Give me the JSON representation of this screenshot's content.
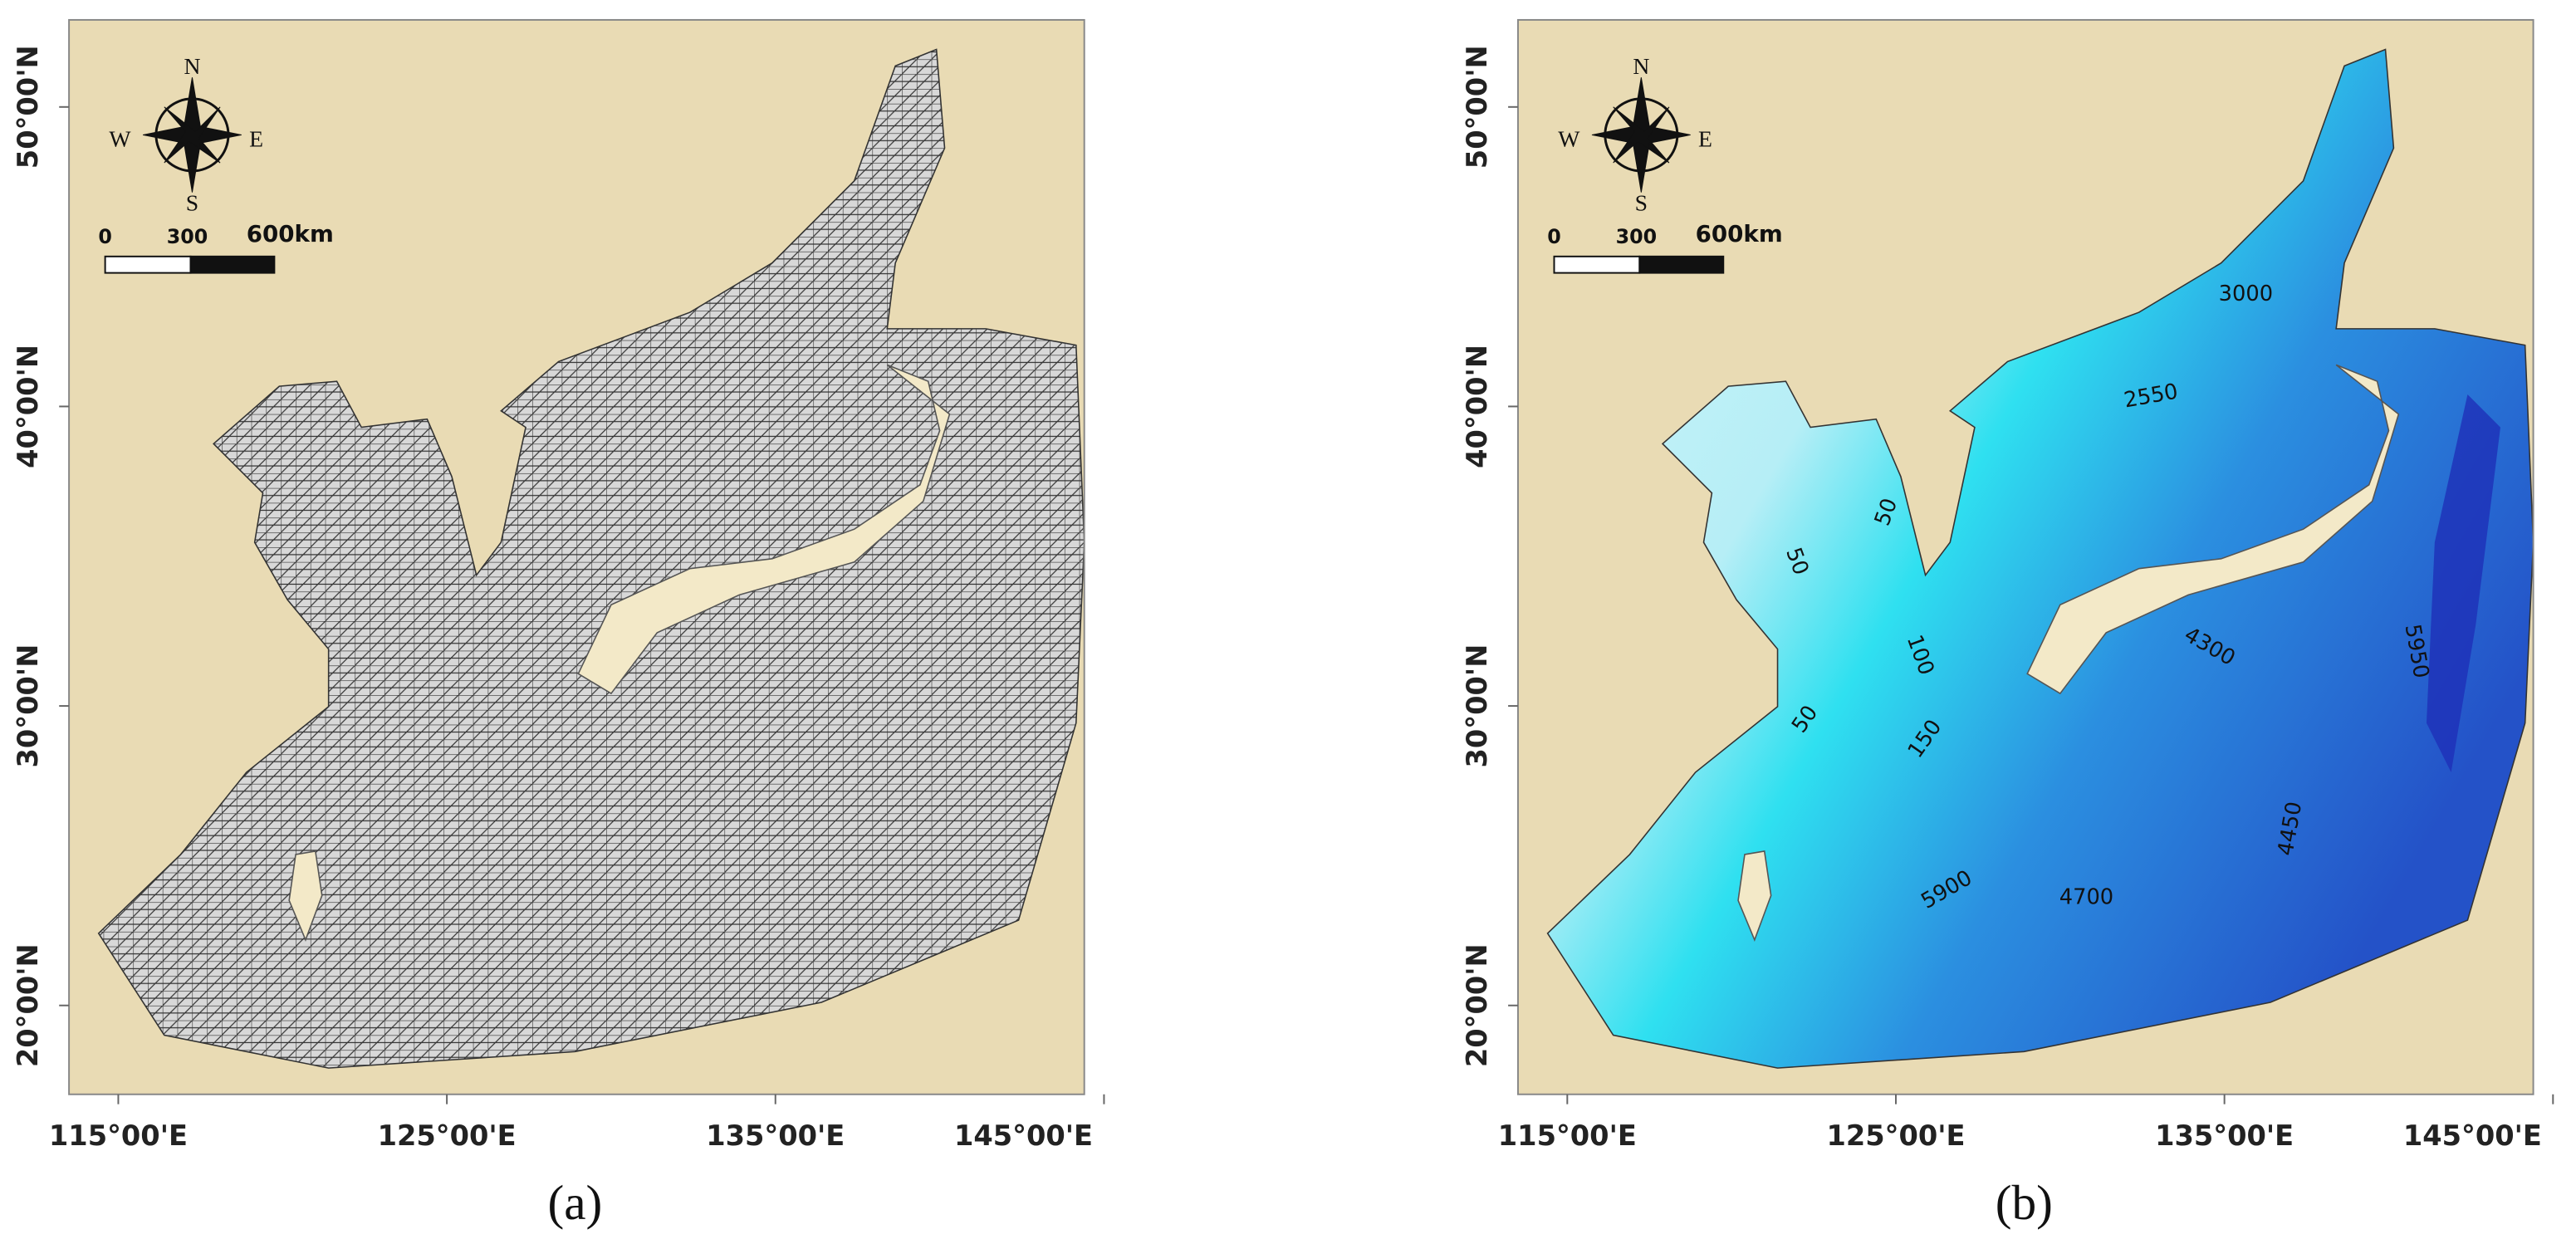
{
  "panels": [
    {
      "label": "(a)",
      "compass": {
        "n": "N",
        "e": "E",
        "s": "S",
        "w": "W"
      },
      "scale_bar": [
        "0",
        "300",
        "600km"
      ],
      "lat_ticks": [
        {
          "value": 50,
          "label": "50°00'N"
        },
        {
          "value": 40,
          "label": "40°00'N"
        },
        {
          "value": 30,
          "label": "30°00'N"
        },
        {
          "value": 20,
          "label": "20°00'N"
        }
      ],
      "lon_ticks": [
        {
          "value": 115,
          "label": "115°00'E"
        },
        {
          "value": 125,
          "label": "125°00'E"
        },
        {
          "value": 135,
          "label": "135°00'E"
        },
        {
          "value": 145,
          "label": "145°00'E"
        }
      ]
    },
    {
      "label": "(b)",
      "compass": {
        "n": "N",
        "e": "E",
        "s": "S",
        "w": "W"
      },
      "scale_bar": [
        "0",
        "300",
        "600km"
      ],
      "lat_ticks": [
        {
          "value": 50,
          "label": "50°00'N"
        },
        {
          "value": 40,
          "label": "40°00'N"
        },
        {
          "value": 30,
          "label": "30°00'N"
        },
        {
          "value": 20,
          "label": "20°00'N"
        }
      ],
      "lon_ticks": [
        {
          "value": 115,
          "label": "115°00'E"
        },
        {
          "value": 125,
          "label": "125°00'E"
        },
        {
          "value": 135,
          "label": "135°00'E"
        },
        {
          "value": 145,
          "label": "145°00'E"
        }
      ],
      "contours": [
        3000,
        2550,
        50,
        50,
        100,
        50,
        150,
        4300,
        5950,
        4450,
        5900,
        4700
      ]
    }
  ]
}
